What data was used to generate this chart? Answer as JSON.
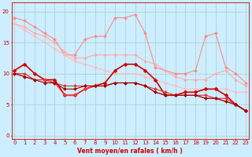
{
  "title": "",
  "xlabel": "Vent moyen/en rafales ( km/h )",
  "background_color": "#cceeff",
  "grid_color": "#aacccc",
  "x_ticks": [
    0,
    1,
    2,
    3,
    4,
    5,
    6,
    7,
    8,
    9,
    10,
    11,
    12,
    13,
    14,
    15,
    16,
    17,
    18,
    19,
    20,
    21,
    22,
    23
  ],
  "y_ticks": [
    0,
    5,
    10,
    15,
    20
  ],
  "ylim": [
    -0.5,
    21.5
  ],
  "xlim": [
    -0.3,
    23.3
  ],
  "lines": [
    {
      "x": [
        0,
        1,
        2,
        3,
        4,
        5,
        6,
        7,
        8,
        9,
        10,
        11,
        12,
        13,
        14,
        15,
        16,
        17,
        18,
        19,
        20,
        21,
        22,
        23
      ],
      "y": [
        19.0,
        18.5,
        17.5,
        16.5,
        15.5,
        13.0,
        13.0,
        15.5,
        16.0,
        16.0,
        19.0,
        19.0,
        19.5,
        16.5,
        11.0,
        10.5,
        10.0,
        10.0,
        10.5,
        16.0,
        16.5,
        11.0,
        10.0,
        8.5
      ],
      "color": "#ff8888",
      "linewidth": 0.8,
      "marker": "D",
      "markersize": 2.0
    },
    {
      "x": [
        0,
        1,
        2,
        3,
        4,
        5,
        6,
        7,
        8,
        9,
        10,
        11,
        12,
        13,
        14,
        15,
        16,
        17,
        18,
        19,
        20,
        21,
        22,
        23
      ],
      "y": [
        18.0,
        17.5,
        16.5,
        16.0,
        15.0,
        13.5,
        12.5,
        12.5,
        13.0,
        13.0,
        13.0,
        13.0,
        13.0,
        12.0,
        11.5,
        10.5,
        9.5,
        9.0,
        9.0,
        9.0,
        10.0,
        10.5,
        9.0,
        8.0
      ],
      "color": "#ffaaaa",
      "linewidth": 0.8,
      "marker": "D",
      "markersize": 2.0
    },
    {
      "x": [
        0,
        1,
        2,
        3,
        4,
        5,
        6,
        7,
        8,
        9,
        10,
        11,
        12,
        13,
        14,
        15,
        16,
        17,
        18,
        19,
        20,
        21,
        22,
        23
      ],
      "y": [
        18.0,
        17.0,
        16.0,
        15.0,
        14.0,
        13.0,
        12.0,
        11.5,
        11.0,
        10.5,
        10.0,
        10.0,
        10.0,
        9.5,
        9.0,
        8.5,
        8.0,
        7.5,
        7.5,
        7.5,
        7.5,
        7.5,
        7.0,
        7.0
      ],
      "color": "#ffbbbb",
      "linewidth": 0.8,
      "marker": "D",
      "markersize": 2.0
    },
    {
      "x": [
        0,
        1,
        2,
        3,
        4,
        5,
        6,
        7,
        8,
        9,
        10,
        11,
        12,
        13,
        14,
        15,
        16,
        17,
        18,
        19,
        20,
        21,
        22,
        23
      ],
      "y": [
        10.5,
        11.5,
        10.0,
        9.0,
        9.0,
        6.5,
        6.5,
        7.5,
        8.0,
        8.5,
        10.5,
        11.5,
        11.5,
        10.5,
        9.0,
        6.5,
        6.5,
        7.0,
        7.0,
        7.5,
        7.5,
        6.5,
        5.0,
        4.0
      ],
      "color": "#cc0000",
      "linewidth": 1.2,
      "marker": "D",
      "markersize": 2.5
    },
    {
      "x": [
        0,
        1,
        2,
        3,
        4,
        5,
        6,
        7,
        8,
        9,
        10,
        11,
        12,
        13,
        14,
        15,
        16,
        17,
        18,
        19,
        20,
        21,
        22,
        23
      ],
      "y": [
        10.0,
        10.0,
        9.0,
        9.0,
        8.5,
        8.0,
        8.0,
        8.0,
        8.0,
        8.0,
        8.5,
        8.5,
        8.5,
        8.0,
        7.5,
        7.0,
        6.5,
        6.5,
        6.5,
        6.5,
        6.0,
        6.0,
        5.0,
        4.0
      ],
      "color": "#dd3333",
      "linewidth": 0.8,
      "marker": "D",
      "markersize": 2.0
    },
    {
      "x": [
        0,
        1,
        2,
        3,
        4,
        5,
        6,
        7,
        8,
        9,
        10,
        11,
        12,
        13,
        14,
        15,
        16,
        17,
        18,
        19,
        20,
        21,
        22,
        23
      ],
      "y": [
        10.0,
        9.5,
        9.0,
        9.0,
        8.5,
        6.5,
        6.5,
        7.5,
        8.0,
        8.0,
        8.5,
        8.5,
        8.5,
        8.0,
        7.0,
        6.5,
        6.5,
        6.5,
        6.5,
        6.0,
        6.0,
        5.5,
        5.0,
        4.0
      ],
      "color": "#ff3333",
      "linewidth": 0.8,
      "marker": "D",
      "markersize": 2.0
    },
    {
      "x": [
        0,
        1,
        2,
        3,
        4,
        5,
        6,
        7,
        8,
        9,
        10,
        11,
        12,
        13,
        14,
        15,
        16,
        17,
        18,
        19,
        20,
        21,
        22,
        23
      ],
      "y": [
        10.0,
        9.5,
        9.0,
        8.5,
        8.5,
        7.5,
        7.5,
        8.0,
        8.0,
        8.0,
        8.5,
        8.5,
        8.5,
        8.0,
        7.0,
        6.5,
        6.5,
        6.5,
        6.5,
        6.0,
        6.0,
        5.5,
        5.0,
        4.0
      ],
      "color": "#990000",
      "linewidth": 0.8,
      "marker": "D",
      "markersize": 2.0
    }
  ]
}
